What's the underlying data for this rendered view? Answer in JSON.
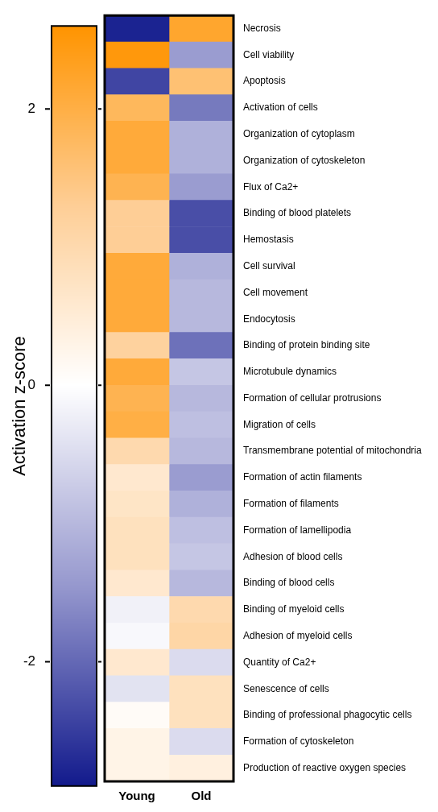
{
  "chart_data": {
    "type": "heatmap",
    "clabel": "Activation z-score",
    "categories": [
      "Young",
      "Old"
    ],
    "y_categories": [
      "Necrosis",
      "Cell viability",
      "Apoptosis",
      "Activation of cells",
      "Organization of cytoplasm",
      "Organization of cytoskeleton",
      "Flux of Ca2+",
      "Binding of blood platelets",
      "Hemostasis",
      "Cell survival",
      "Cell movement",
      "Endocytosis",
      "Binding of protein binding site",
      "Microtubule dynamics",
      "Formation of cellular protrusions",
      "Migration of cells",
      "Transmembrane potential of mitochondria",
      "Formation of actin filaments",
      "Formation of filaments",
      "Formation of lamellipodia",
      "Adhesion of blood cells",
      "Binding of blood cells",
      "Binding of myeloid cells",
      "Adhesion of myeloid cells",
      "Quantity of Ca2+",
      "Senescence of cells",
      "Binding of professional phagocytic cells",
      "Formation of cytoskeleton",
      "Production of reactive oxygen species"
    ],
    "cells": [
      [
        -2.8,
        2.2
      ],
      [
        2.5,
        -1.4
      ],
      [
        -2.4,
        1.6
      ],
      [
        1.8,
        -1.8
      ],
      [
        2.1,
        -1.1
      ],
      [
        2.1,
        -1.1
      ],
      [
        1.9,
        -1.4
      ],
      [
        1.3,
        -2.3
      ],
      [
        1.3,
        -2.3
      ],
      [
        2.1,
        -1.1
      ],
      [
        2.1,
        -1.0
      ],
      [
        2.1,
        -1.0
      ],
      [
        1.2,
        -1.9
      ],
      [
        2.1,
        -0.8
      ],
      [
        1.9,
        -1.0
      ],
      [
        2.0,
        -0.9
      ],
      [
        1.0,
        -1.0
      ],
      [
        0.6,
        -1.4
      ],
      [
        0.7,
        -1.1
      ],
      [
        0.8,
        -0.9
      ],
      [
        0.8,
        -0.8
      ],
      [
        0.6,
        -1.0
      ],
      [
        -0.2,
        1.0
      ],
      [
        -0.1,
        1.1
      ],
      [
        0.6,
        -0.5
      ],
      [
        -0.4,
        0.8
      ],
      [
        0.1,
        0.8
      ],
      [
        0.3,
        -0.5
      ],
      [
        0.3,
        0.4
      ]
    ],
    "clim": [
      -2.9,
      2.6
    ],
    "cticks": [
      -2,
      0,
      2
    ]
  }
}
